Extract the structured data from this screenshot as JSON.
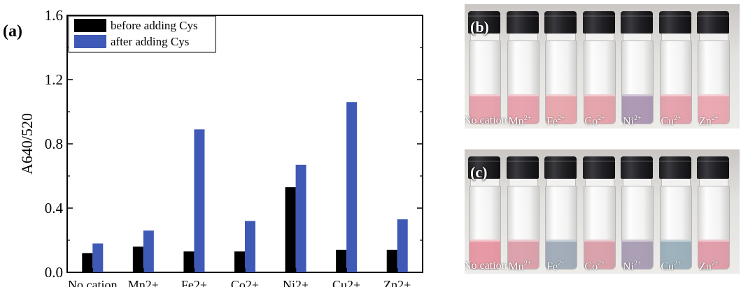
{
  "panel_a_label": "(a)",
  "chart_data": {
    "type": "bar",
    "title": "",
    "xlabel": "",
    "ylabel": "A640/520",
    "ylim": [
      0.0,
      1.6
    ],
    "yticks": [
      "0.0",
      "0.4",
      "0.8",
      "1.2",
      "1.6"
    ],
    "categories": [
      "No cation",
      "Mn2+",
      "Fe2+",
      "Co2+",
      "Ni2+",
      "Cu2+",
      "Zn2+"
    ],
    "series": [
      {
        "name": "before adding Cys",
        "color": "#000000",
        "values": [
          0.12,
          0.16,
          0.13,
          0.13,
          0.53,
          0.14,
          0.14
        ]
      },
      {
        "name": "after adding Cys",
        "color": "#3f59b6",
        "values": [
          0.18,
          0.26,
          0.89,
          0.32,
          0.67,
          1.06,
          0.33
        ]
      }
    ],
    "legend_position": "top-left",
    "grid": false
  },
  "photos": [
    {
      "label": "(b)",
      "ions": [
        {
          "base": "No cation",
          "charge": ""
        },
        {
          "base": "Mn",
          "charge": "2+"
        },
        {
          "base": "Fe",
          "charge": "2+"
        },
        {
          "base": "Co",
          "charge": "2+"
        },
        {
          "base": "Ni",
          "charge": "2+"
        },
        {
          "base": "Cu",
          "charge": "2+"
        },
        {
          "base": "Zn",
          "charge": "2+"
        }
      ],
      "liquid_colors": [
        "#e59aa6",
        "#e59aa6",
        "#e5a0a6",
        "#e39ca4",
        "#a78fad",
        "#e39aa5",
        "#e8a0ab"
      ]
    },
    {
      "label": "(c)",
      "ions": [
        {
          "base": "No cation",
          "charge": ""
        },
        {
          "base": "Mn",
          "charge": "2+"
        },
        {
          "base": "Fe",
          "charge": "2+"
        },
        {
          "base": "Co",
          "charge": "2+"
        },
        {
          "base": "Ni",
          "charge": "2+"
        },
        {
          "base": "Cu",
          "charge": "2+"
        },
        {
          "base": "Zn",
          "charge": "2+"
        }
      ],
      "liquid_colors": [
        "#e58f9c",
        "#d99aa4",
        "#9aa6b3",
        "#d69aa3",
        "#a496b0",
        "#93aab5",
        "#de94a2"
      ]
    }
  ]
}
